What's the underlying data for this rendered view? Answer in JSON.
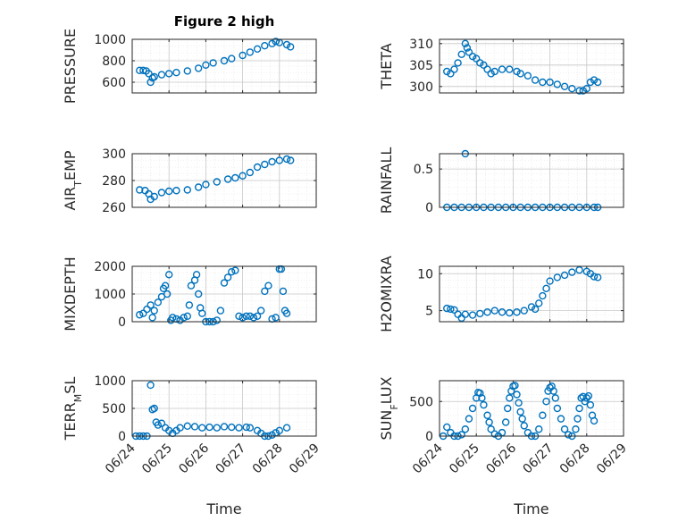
{
  "figure": {
    "title": "Figure 2 high"
  },
  "chart_data": [
    {
      "type": "scatter",
      "ylabel": "PRESSURE",
      "xlim": [
        0,
        5
      ],
      "ylim": [
        500,
        1000
      ],
      "yticks": [
        600,
        800,
        1000
      ],
      "grid": true,
      "points": [
        [
          0.2,
          710
        ],
        [
          0.3,
          710
        ],
        [
          0.38,
          705
        ],
        [
          0.45,
          680
        ],
        [
          0.5,
          600
        ],
        [
          0.55,
          640
        ],
        [
          0.6,
          650
        ],
        [
          0.8,
          670
        ],
        [
          1,
          680
        ],
        [
          1.2,
          690
        ],
        [
          1.5,
          705
        ],
        [
          1.8,
          730
        ],
        [
          2,
          760
        ],
        [
          2.2,
          780
        ],
        [
          2.5,
          800
        ],
        [
          2.7,
          820
        ],
        [
          3,
          850
        ],
        [
          3.2,
          880
        ],
        [
          3.4,
          910
        ],
        [
          3.6,
          940
        ],
        [
          3.8,
          960
        ],
        [
          3.9,
          980
        ],
        [
          4,
          970
        ],
        [
          4.2,
          950
        ],
        [
          4.3,
          930
        ]
      ]
    },
    {
      "type": "scatter",
      "ylabel": "THETA",
      "xlim": [
        0,
        5
      ],
      "ylim": [
        298.5,
        311
      ],
      "yticks": [
        300,
        305,
        310
      ],
      "grid": true,
      "points": [
        [
          0.2,
          303.5
        ],
        [
          0.3,
          303
        ],
        [
          0.4,
          304
        ],
        [
          0.5,
          305.5
        ],
        [
          0.6,
          307.5
        ],
        [
          0.7,
          310
        ],
        [
          0.75,
          309
        ],
        [
          0.8,
          308
        ],
        [
          0.9,
          307
        ],
        [
          1,
          306.5
        ],
        [
          1.1,
          305.5
        ],
        [
          1.2,
          305
        ],
        [
          1.3,
          304
        ],
        [
          1.4,
          303
        ],
        [
          1.5,
          303.5
        ],
        [
          1.7,
          304
        ],
        [
          1.9,
          304
        ],
        [
          2.1,
          303.5
        ],
        [
          2.2,
          303
        ],
        [
          2.4,
          302.5
        ],
        [
          2.6,
          301.5
        ],
        [
          2.8,
          301
        ],
        [
          3,
          301
        ],
        [
          3.2,
          300.5
        ],
        [
          3.4,
          300
        ],
        [
          3.6,
          299.5
        ],
        [
          3.8,
          299
        ],
        [
          3.9,
          299
        ],
        [
          4,
          299.5
        ],
        [
          4.1,
          301
        ],
        [
          4.2,
          301.5
        ],
        [
          4.3,
          301
        ]
      ]
    },
    {
      "type": "scatter",
      "ylabel": "AIR_TEMP",
      "xlim": [
        0,
        5
      ],
      "ylim": [
        260,
        300
      ],
      "yticks": [
        260,
        280,
        300
      ],
      "grid": true,
      "points": [
        [
          0.2,
          273
        ],
        [
          0.35,
          272.5
        ],
        [
          0.45,
          270
        ],
        [
          0.5,
          266
        ],
        [
          0.6,
          268
        ],
        [
          0.8,
          271
        ],
        [
          1,
          272
        ],
        [
          1.2,
          272.5
        ],
        [
          1.5,
          273
        ],
        [
          1.8,
          275
        ],
        [
          2,
          277
        ],
        [
          2.3,
          279
        ],
        [
          2.6,
          281
        ],
        [
          2.8,
          282
        ],
        [
          3,
          283.5
        ],
        [
          3.2,
          286
        ],
        [
          3.4,
          290
        ],
        [
          3.6,
          292
        ],
        [
          3.8,
          294
        ],
        [
          4,
          295
        ],
        [
          4.2,
          296
        ],
        [
          4.3,
          295
        ]
      ]
    },
    {
      "type": "scatter",
      "ylabel": "RAINFALL",
      "xlim": [
        0,
        5
      ],
      "ylim": [
        0,
        0.7
      ],
      "yticks": [
        0,
        0.5
      ],
      "grid": true,
      "points": [
        [
          0.2,
          0
        ],
        [
          0.4,
          0
        ],
        [
          0.6,
          0
        ],
        [
          0.7,
          0.7
        ],
        [
          0.8,
          0
        ],
        [
          1,
          0
        ],
        [
          1.2,
          0
        ],
        [
          1.4,
          0
        ],
        [
          1.6,
          0
        ],
        [
          1.8,
          0
        ],
        [
          2,
          0
        ],
        [
          2.2,
          0
        ],
        [
          2.4,
          0
        ],
        [
          2.6,
          0
        ],
        [
          2.8,
          0
        ],
        [
          3,
          0
        ],
        [
          3.2,
          0
        ],
        [
          3.4,
          0
        ],
        [
          3.6,
          0
        ],
        [
          3.8,
          0
        ],
        [
          4,
          0
        ],
        [
          4.2,
          0
        ],
        [
          4.3,
          0
        ]
      ]
    },
    {
      "type": "scatter",
      "ylabel": "MIXDEPTH",
      "xlim": [
        0,
        5
      ],
      "ylim": [
        0,
        2000
      ],
      "yticks": [
        0,
        1000,
        2000
      ],
      "grid": true,
      "points": [
        [
          0.2,
          250
        ],
        [
          0.3,
          300
        ],
        [
          0.4,
          450
        ],
        [
          0.5,
          600
        ],
        [
          0.55,
          150
        ],
        [
          0.6,
          400
        ],
        [
          0.7,
          700
        ],
        [
          0.8,
          900
        ],
        [
          0.85,
          1200
        ],
        [
          0.9,
          1300
        ],
        [
          0.95,
          1000
        ],
        [
          1,
          1700
        ],
        [
          1.05,
          50
        ],
        [
          1.1,
          150
        ],
        [
          1.2,
          100
        ],
        [
          1.3,
          50
        ],
        [
          1.4,
          150
        ],
        [
          1.5,
          200
        ],
        [
          1.55,
          600
        ],
        [
          1.6,
          1300
        ],
        [
          1.7,
          1500
        ],
        [
          1.75,
          1700
        ],
        [
          1.8,
          1000
        ],
        [
          1.85,
          500
        ],
        [
          1.9,
          300
        ],
        [
          2,
          0
        ],
        [
          2.1,
          0
        ],
        [
          2.2,
          0
        ],
        [
          2.3,
          50
        ],
        [
          2.4,
          400
        ],
        [
          2.5,
          1400
        ],
        [
          2.6,
          1600
        ],
        [
          2.7,
          1800
        ],
        [
          2.8,
          1850
        ],
        [
          2.9,
          200
        ],
        [
          3,
          150
        ],
        [
          3.1,
          200
        ],
        [
          3.2,
          200
        ],
        [
          3.3,
          150
        ],
        [
          3.4,
          200
        ],
        [
          3.5,
          400
        ],
        [
          3.6,
          1100
        ],
        [
          3.7,
          1300
        ],
        [
          3.8,
          100
        ],
        [
          3.9,
          150
        ],
        [
          4,
          1900
        ],
        [
          4.05,
          1900
        ],
        [
          4.1,
          1100
        ],
        [
          4.15,
          400
        ],
        [
          4.2,
          300
        ]
      ]
    },
    {
      "type": "scatter",
      "ylabel": "H2OMIXRA",
      "xlim": [
        0,
        5
      ],
      "ylim": [
        3.5,
        11
      ],
      "yticks": [
        5,
        10
      ],
      "grid": true,
      "points": [
        [
          0.2,
          5.3
        ],
        [
          0.3,
          5.2
        ],
        [
          0.4,
          5.1
        ],
        [
          0.5,
          4.5
        ],
        [
          0.6,
          4
        ],
        [
          0.7,
          4.5
        ],
        [
          0.9,
          4.4
        ],
        [
          1.1,
          4.6
        ],
        [
          1.3,
          4.8
        ],
        [
          1.5,
          5
        ],
        [
          1.7,
          4.8
        ],
        [
          1.9,
          4.7
        ],
        [
          2.1,
          4.8
        ],
        [
          2.3,
          5
        ],
        [
          2.5,
          5.5
        ],
        [
          2.6,
          5.2
        ],
        [
          2.7,
          6
        ],
        [
          2.8,
          7
        ],
        [
          2.9,
          8
        ],
        [
          3,
          9
        ],
        [
          3.2,
          9.5
        ],
        [
          3.4,
          9.8
        ],
        [
          3.6,
          10.2
        ],
        [
          3.8,
          10.5
        ],
        [
          4,
          10.3
        ],
        [
          4.1,
          10
        ],
        [
          4.2,
          9.6
        ],
        [
          4.3,
          9.5
        ]
      ]
    },
    {
      "type": "scatter",
      "ylabel": "TERR_MSL",
      "xlim": [
        0,
        5
      ],
      "ylim": [
        0,
        1000
      ],
      "yticks": [
        0,
        500,
        1000
      ],
      "grid": true,
      "points": [
        [
          0.1,
          0
        ],
        [
          0.2,
          0
        ],
        [
          0.3,
          0
        ],
        [
          0.4,
          0
        ],
        [
          0.5,
          920
        ],
        [
          0.55,
          480
        ],
        [
          0.6,
          500
        ],
        [
          0.65,
          250
        ],
        [
          0.7,
          200
        ],
        [
          0.8,
          230
        ],
        [
          0.9,
          150
        ],
        [
          1,
          100
        ],
        [
          1.1,
          50
        ],
        [
          1.2,
          100
        ],
        [
          1.3,
          150
        ],
        [
          1.5,
          180
        ],
        [
          1.7,
          170
        ],
        [
          1.9,
          150
        ],
        [
          2.1,
          160
        ],
        [
          2.3,
          150
        ],
        [
          2.5,
          170
        ],
        [
          2.7,
          160
        ],
        [
          2.9,
          150
        ],
        [
          3.1,
          160
        ],
        [
          3.2,
          150
        ],
        [
          3.4,
          100
        ],
        [
          3.5,
          50
        ],
        [
          3.6,
          0
        ],
        [
          3.7,
          0
        ],
        [
          3.8,
          20
        ],
        [
          3.9,
          60
        ],
        [
          4,
          100
        ],
        [
          4.2,
          150
        ]
      ]
    },
    {
      "type": "scatter",
      "ylabel": "SUN_FLUX",
      "xlim": [
        0,
        5
      ],
      "ylim": [
        0,
        800
      ],
      "yticks": [
        0,
        500
      ],
      "grid": true,
      "points": [
        [
          0.1,
          0
        ],
        [
          0.2,
          130
        ],
        [
          0.3,
          50
        ],
        [
          0.4,
          0
        ],
        [
          0.5,
          0
        ],
        [
          0.6,
          20
        ],
        [
          0.7,
          100
        ],
        [
          0.8,
          250
        ],
        [
          0.9,
          400
        ],
        [
          1,
          550
        ],
        [
          1.05,
          630
        ],
        [
          1.1,
          620
        ],
        [
          1.15,
          550
        ],
        [
          1.2,
          450
        ],
        [
          1.3,
          300
        ],
        [
          1.35,
          200
        ],
        [
          1.4,
          100
        ],
        [
          1.5,
          30
        ],
        [
          1.6,
          0
        ],
        [
          1.7,
          50
        ],
        [
          1.8,
          200
        ],
        [
          1.85,
          400
        ],
        [
          1.9,
          550
        ],
        [
          1.95,
          650
        ],
        [
          2,
          720
        ],
        [
          2.05,
          730
        ],
        [
          2.1,
          600
        ],
        [
          2.15,
          480
        ],
        [
          2.2,
          350
        ],
        [
          2.25,
          250
        ],
        [
          2.3,
          150
        ],
        [
          2.4,
          50
        ],
        [
          2.5,
          0
        ],
        [
          2.6,
          0
        ],
        [
          2.7,
          100
        ],
        [
          2.8,
          300
        ],
        [
          2.9,
          500
        ],
        [
          2.95,
          650
        ],
        [
          3,
          700
        ],
        [
          3.05,
          720
        ],
        [
          3.1,
          650
        ],
        [
          3.15,
          550
        ],
        [
          3.2,
          400
        ],
        [
          3.3,
          250
        ],
        [
          3.4,
          100
        ],
        [
          3.5,
          20
        ],
        [
          3.6,
          0
        ],
        [
          3.7,
          100
        ],
        [
          3.75,
          250
        ],
        [
          3.8,
          400
        ],
        [
          3.85,
          550
        ],
        [
          3.9,
          570
        ],
        [
          3.95,
          500
        ],
        [
          4,
          550
        ],
        [
          4.05,
          580
        ],
        [
          4.1,
          450
        ],
        [
          4.15,
          300
        ],
        [
          4.2,
          220
        ]
      ]
    }
  ],
  "xaxis": {
    "ticks": [
      "06/24",
      "06/25",
      "06/26",
      "06/27",
      "06/28",
      "06/29"
    ],
    "label": "Time"
  },
  "colors": {
    "marker": "#0072BD",
    "axis": "#262626",
    "grid": "#c8c8c8"
  }
}
